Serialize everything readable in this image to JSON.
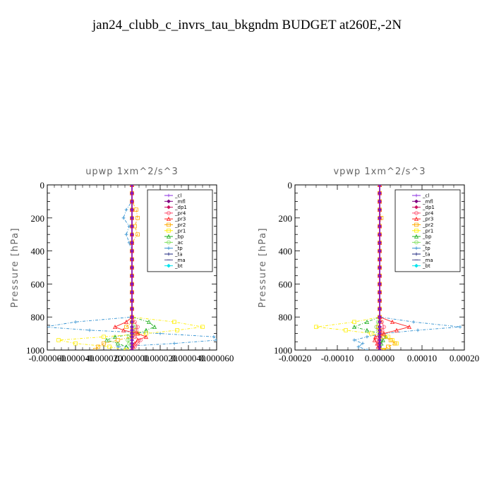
{
  "figure_title": "jan24_clubb_c_invrs_tau_bkgndm  BUDGET at260E,-2N",
  "chart_data": [
    {
      "type": "line",
      "title": "upwp   1xm^2/s^3",
      "ylabel": "Pressure [hPa]",
      "xlabel": "",
      "xlim": [
        -6e-05,
        6e-05
      ],
      "ylim": [
        1000,
        0
      ],
      "x_ticks": [
        "-0.000060",
        "-0.000040",
        "-0.000020",
        "0.000000",
        "0.000020",
        "0.000040",
        "0.000060"
      ],
      "y_ticks": [
        "0",
        "200",
        "400",
        "600",
        "800",
        "1000"
      ],
      "legend_position": "upper-right",
      "pressure": [
        0,
        50,
        100,
        150,
        200,
        250,
        300,
        350,
        400,
        450,
        500,
        550,
        600,
        650,
        700,
        750,
        800,
        830,
        860,
        880,
        900,
        920,
        940,
        960,
        980,
        1000
      ],
      "series": [
        {
          "name": "_cl",
          "color": "#8a2be2",
          "marker": "plus",
          "x": [
            0,
            0,
            0,
            0,
            0,
            0,
            0,
            0,
            0,
            0,
            0,
            0,
            0,
            0,
            0,
            0,
            0,
            0,
            0,
            0,
            0,
            0,
            0,
            0,
            0,
            0
          ]
        },
        {
          "name": "_mfl",
          "color": "#800080",
          "marker": "diamond",
          "x": [
            0,
            0,
            0,
            0,
            0,
            0,
            0,
            0,
            0,
            0,
            0,
            0,
            0,
            0,
            0,
            0,
            0,
            0,
            0,
            0,
            0,
            0,
            0,
            0,
            0,
            0
          ]
        },
        {
          "name": "_dp1",
          "color": "#cc1060",
          "marker": "diamond",
          "x": [
            0,
            0,
            0,
            0,
            0,
            0,
            0,
            0,
            0,
            0,
            0,
            0,
            0,
            0,
            0,
            0,
            0,
            0,
            0,
            0,
            0,
            0,
            0,
            0,
            0,
            0
          ]
        },
        {
          "name": "_pr4",
          "color": "#ff4d6d",
          "marker": "circle",
          "x": [
            0,
            0,
            0,
            0,
            0,
            0,
            0,
            0,
            0,
            0,
            0,
            0,
            0,
            0,
            0,
            0,
            0,
            2e-06,
            4e-06,
            3e-06,
            2e-06,
            2e-06,
            6e-06,
            4e-06,
            2e-06,
            0
          ]
        },
        {
          "name": "_pr3",
          "color": "#ff2020",
          "marker": "triangle",
          "x": [
            0,
            0,
            0,
            0,
            0,
            0,
            0,
            0,
            0,
            0,
            0,
            0,
            0,
            0,
            0,
            0,
            0,
            -4e-06,
            -1.2e-05,
            -6e-06,
            4e-06,
            1e-05,
            4e-06,
            2e-06,
            1e-06,
            0
          ]
        },
        {
          "name": "_pr2",
          "color": "#ffaa00",
          "marker": "square",
          "x": [
            0,
            0,
            0,
            3e-06,
            4e-06,
            2e-06,
            4e-06,
            0,
            0,
            0,
            0,
            0,
            0,
            0,
            0,
            0,
            0,
            0,
            -4e-06,
            2e-06,
            4e-06,
            0,
            -1e-05,
            -2e-05,
            -2.4e-05,
            -2.6e-05
          ]
        },
        {
          "name": "_pr1",
          "color": "#ffee00",
          "marker": "square",
          "x": [
            0,
            0,
            0,
            0,
            0,
            0,
            0,
            0,
            0,
            0,
            0,
            0,
            0,
            0,
            0,
            0,
            0,
            3e-05,
            5e-05,
            3.2e-05,
            1e-05,
            -2e-05,
            -5.2e-05,
            -4e-05,
            -1.6e-05,
            -4e-06
          ]
        },
        {
          "name": "_bp",
          "color": "#20b020",
          "marker": "triangle",
          "x": [
            0,
            0,
            0,
            0,
            0,
            0,
            0,
            0,
            0,
            0,
            0,
            0,
            0,
            0,
            0,
            0,
            0,
            1.2e-05,
            1.6e-05,
            1e-05,
            4e-06,
            -1.2e-05,
            -1.8e-05,
            -1e-05,
            -4e-06,
            0
          ]
        },
        {
          "name": "_ac",
          "color": "#80e060",
          "marker": "circle",
          "x": [
            0,
            0,
            0,
            0,
            0,
            0,
            0,
            0,
            0,
            0,
            0,
            0,
            0,
            0,
            0,
            0,
            0,
            0,
            2e-06,
            2e-06,
            0,
            -2e-06,
            -3e-06,
            -2e-06,
            0,
            0
          ]
        },
        {
          "name": "_tp",
          "color": "#3090d0",
          "marker": "plus",
          "x": [
            0,
            0,
            0,
            -4e-06,
            -6e-06,
            -2e-06,
            -4e-06,
            -2e-06,
            0,
            0,
            0,
            0,
            0,
            0,
            0,
            0,
            0,
            -4e-05,
            -6.2e-05,
            -3e-05,
            2e-05,
            5.8e-05,
            6e-05,
            3e-05,
            -1e-05,
            -6e-06
          ]
        },
        {
          "name": "_ta",
          "color": "#1a237e",
          "marker": "plus",
          "x": [
            0,
            0,
            0,
            0,
            0,
            0,
            0,
            0,
            0,
            0,
            0,
            0,
            0,
            0,
            0,
            0,
            0,
            0,
            0,
            0,
            0,
            0,
            0,
            0,
            0,
            0
          ]
        },
        {
          "name": "_ma",
          "color": "#505090",
          "marker": "dash",
          "x": [
            0,
            0,
            0,
            0,
            0,
            0,
            0,
            0,
            0,
            0,
            0,
            0,
            0,
            0,
            0,
            0,
            0,
            0,
            0,
            0,
            0,
            0,
            0,
            0,
            0,
            0
          ]
        },
        {
          "name": "_bt",
          "color": "#00e5ee",
          "marker": "diamond",
          "x": [
            0,
            0,
            0,
            0,
            0,
            0,
            0,
            0,
            0,
            0,
            0,
            0,
            0,
            0,
            0,
            0,
            0,
            0,
            0,
            0,
            0,
            0,
            0,
            0,
            0,
            0
          ]
        }
      ]
    },
    {
      "type": "line",
      "title": "vpwp   1xm^2/s^3",
      "ylabel": "Pressure [hPa]",
      "xlabel": "",
      "xlim": [
        -0.0002,
        0.0002
      ],
      "ylim": [
        1000,
        0
      ],
      "x_ticks": [
        "-0.00020",
        "-0.00010",
        "0.00000",
        "0.00010",
        "0.00020"
      ],
      "y_ticks": [
        "0",
        "200",
        "400",
        "600",
        "800",
        "1000"
      ],
      "legend_position": "upper-right",
      "pressure": [
        0,
        50,
        100,
        150,
        200,
        250,
        300,
        350,
        400,
        450,
        500,
        550,
        600,
        650,
        700,
        750,
        800,
        830,
        860,
        880,
        900,
        920,
        940,
        960,
        980,
        1000
      ],
      "series": [
        {
          "name": "_cl",
          "color": "#8a2be2",
          "marker": "plus",
          "x": [
            0,
            0,
            0,
            0,
            0,
            0,
            0,
            0,
            0,
            0,
            0,
            0,
            0,
            0,
            0,
            0,
            0,
            0,
            0,
            0,
            0,
            0,
            0,
            0,
            0,
            0
          ]
        },
        {
          "name": "_mfl",
          "color": "#800080",
          "marker": "diamond",
          "x": [
            0,
            0,
            0,
            0,
            0,
            0,
            0,
            0,
            0,
            0,
            0,
            0,
            0,
            0,
            0,
            0,
            0,
            0,
            0,
            0,
            0,
            0,
            0,
            0,
            0,
            0
          ]
        },
        {
          "name": "_dp1",
          "color": "#cc1060",
          "marker": "diamond",
          "x": [
            0,
            0,
            0,
            0,
            0,
            0,
            0,
            0,
            0,
            0,
            0,
            0,
            0,
            0,
            0,
            0,
            0,
            0,
            0,
            0,
            0,
            0,
            0,
            0,
            0,
            0
          ]
        },
        {
          "name": "_pr4",
          "color": "#ff4d6d",
          "marker": "circle",
          "x": [
            0,
            0,
            0,
            0,
            0,
            0,
            0,
            0,
            0,
            0,
            0,
            0,
            0,
            0,
            0,
            0,
            0,
            5e-06,
            1e-05,
            6e-06,
            2e-06,
            0,
            -6e-06,
            -4e-06,
            -2e-06,
            0
          ]
        },
        {
          "name": "_pr3",
          "color": "#ff2020",
          "marker": "triangle",
          "x": [
            0,
            0,
            0,
            0,
            0,
            0,
            0,
            0,
            0,
            0,
            0,
            0,
            0,
            0,
            0,
            0,
            0,
            3e-05,
            7e-05,
            4e-05,
            1e-05,
            -1e-05,
            -1.2e-05,
            -6e-06,
            -4e-06,
            0
          ]
        },
        {
          "name": "_pr2",
          "color": "#ffaa00",
          "marker": "square",
          "x": [
            0,
            0,
            0,
            0,
            4e-06,
            0,
            0,
            0,
            0,
            0,
            0,
            0,
            0,
            0,
            0,
            0,
            0,
            2e-06,
            -4e-06,
            0,
            6e-06,
            1e-05,
            2.6e-05,
            3.6e-05,
            2e-05,
            1e-05
          ]
        },
        {
          "name": "_pr1",
          "color": "#ffee00",
          "marker": "square",
          "x": [
            0,
            0,
            0,
            0,
            0,
            0,
            0,
            0,
            0,
            0,
            0,
            0,
            0,
            0,
            0,
            0,
            0,
            -6e-05,
            -0.00015,
            -8e-05,
            -2e-05,
            2e-05,
            3e-05,
            4e-05,
            2e-05,
            5e-06
          ]
        },
        {
          "name": "_bp",
          "color": "#20b020",
          "marker": "triangle",
          "x": [
            0,
            0,
            0,
            0,
            0,
            0,
            0,
            0,
            0,
            0,
            0,
            0,
            0,
            0,
            0,
            0,
            0,
            -3e-05,
            -6e-05,
            -3e-05,
            0,
            1.5e-05,
            8e-06,
            4e-06,
            0,
            0
          ]
        },
        {
          "name": "_ac",
          "color": "#80e060",
          "marker": "circle",
          "x": [
            0,
            0,
            0,
            0,
            0,
            0,
            0,
            0,
            0,
            0,
            0,
            0,
            0,
            0,
            0,
            0,
            0,
            -4e-06,
            -8e-06,
            -4e-06,
            0,
            2e-06,
            2e-06,
            0,
            0,
            0
          ]
        },
        {
          "name": "_tp",
          "color": "#3090d0",
          "marker": "plus",
          "x": [
            0,
            0,
            0,
            0,
            0,
            0,
            0,
            0,
            0,
            0,
            0,
            0,
            0,
            0,
            0,
            0,
            0,
            8e-05,
            0.00019,
            9e-05,
            1e-05,
            -3e-05,
            -6e-05,
            -4e-05,
            -5e-05,
            -3e-05
          ]
        },
        {
          "name": "_ta",
          "color": "#1a237e",
          "marker": "plus",
          "x": [
            0,
            0,
            0,
            0,
            0,
            0,
            0,
            0,
            0,
            0,
            0,
            0,
            0,
            0,
            0,
            0,
            0,
            0,
            0,
            0,
            0,
            0,
            0,
            0,
            0,
            0
          ]
        },
        {
          "name": "_ma",
          "color": "#505090",
          "marker": "dash",
          "x": [
            0,
            0,
            0,
            0,
            0,
            0,
            0,
            0,
            0,
            0,
            0,
            0,
            0,
            0,
            0,
            0,
            0,
            0,
            0,
            0,
            0,
            0,
            0,
            0,
            0,
            0
          ]
        },
        {
          "name": "_bt",
          "color": "#00e5ee",
          "marker": "diamond",
          "x": [
            0,
            0,
            0,
            0,
            0,
            0,
            0,
            0,
            0,
            0,
            0,
            0,
            0,
            0,
            0,
            0,
            0,
            0,
            0,
            0,
            0,
            0,
            0,
            0,
            0,
            0
          ]
        }
      ]
    }
  ]
}
